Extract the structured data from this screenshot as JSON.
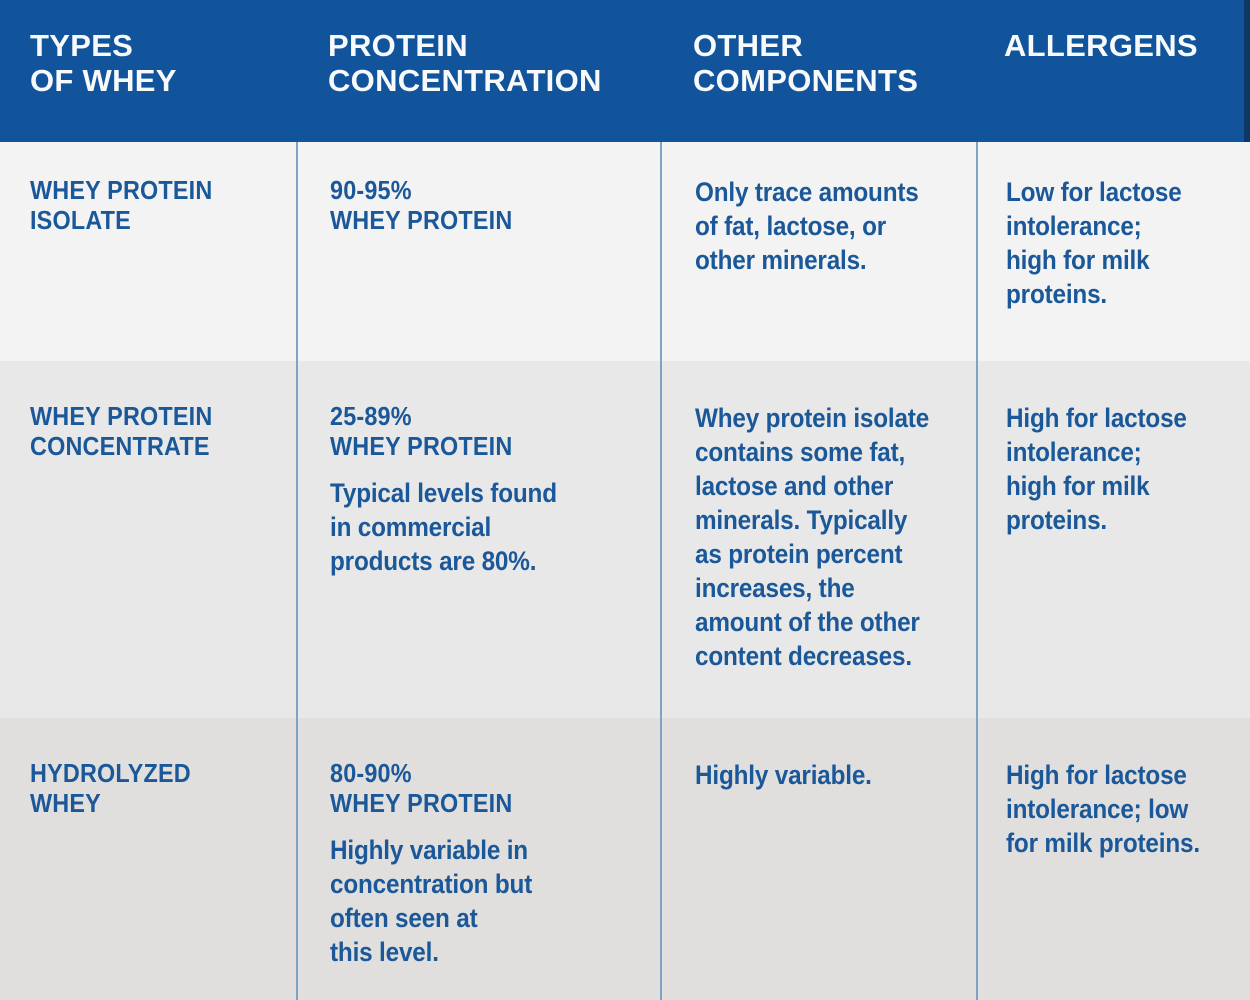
{
  "colors": {
    "header_bg": "#11549b",
    "header_text": "#f7f9fb",
    "header_edge": "#0d3765",
    "text_blue": "#1a5899",
    "separator": "#7fa3c4",
    "row1_bg": "#f4f3f3",
    "row2_bg": "#e9e8e8",
    "row3_bg": "#e0dfde"
  },
  "header": {
    "columns": [
      "TYPES\nOF WHEY",
      "PROTEIN\nCONCENTRATION",
      "OTHER\nCOMPONENTS",
      "ALLERGENS"
    ]
  },
  "rows": [
    {
      "type": "WHEY PROTEIN\nISOLATE",
      "concentration_headline": "90-95%\nWHEY PROTEIN",
      "concentration_note": "",
      "other_components": "Only trace amounts\nof fat, lactose, or\nother minerals.",
      "allergens": "Low for lactose\nintolerance;\nhigh for milk\nproteins."
    },
    {
      "type": "WHEY PROTEIN\nCONCENTRATE",
      "concentration_headline": "25-89%\nWHEY PROTEIN",
      "concentration_note": "Typical levels found\nin commercial\nproducts are 80%.",
      "other_components": "Whey protein isolate\ncontains some fat,\nlactose and other\nminerals. Typically\nas protein percent\nincreases, the\namount of the other\ncontent decreases.",
      "allergens": "High for lactose\nintolerance;\nhigh for milk\nproteins."
    },
    {
      "type": "HYDROLYZED\nWHEY",
      "concentration_headline": "80-90%\nWHEY PROTEIN",
      "concentration_note": "Highly variable in\nconcentration but\noften seen at\nthis level.",
      "other_components": "Highly variable.",
      "allergens": "High for lactose\nintolerance; low\nfor milk proteins."
    }
  ],
  "chart_data": {
    "type": "table",
    "title": "Types of Whey comparison table",
    "columns": [
      "TYPES OF WHEY",
      "PROTEIN CONCENTRATION",
      "OTHER COMPONENTS",
      "ALLERGENS"
    ],
    "rows": [
      [
        "WHEY PROTEIN ISOLATE",
        "90-95% WHEY PROTEIN",
        "Only trace amounts of fat, lactose, or other minerals.",
        "Low for lactose intolerance; high for milk proteins."
      ],
      [
        "WHEY PROTEIN CONCENTRATE",
        "25-89% WHEY PROTEIN. Typical levels found in commercial products are 80%.",
        "Whey protein isolate contains some fat, lactose and other minerals. Typically as protein percent increases, the amount of the other content decreases.",
        "High for lactose intolerance; high for milk proteins."
      ],
      [
        "HYDROLYZED WHEY",
        "80-90% WHEY PROTEIN. Highly variable in concentration but often seen at this level.",
        "Highly variable.",
        "High for lactose intolerance; low for milk proteins."
      ]
    ]
  }
}
